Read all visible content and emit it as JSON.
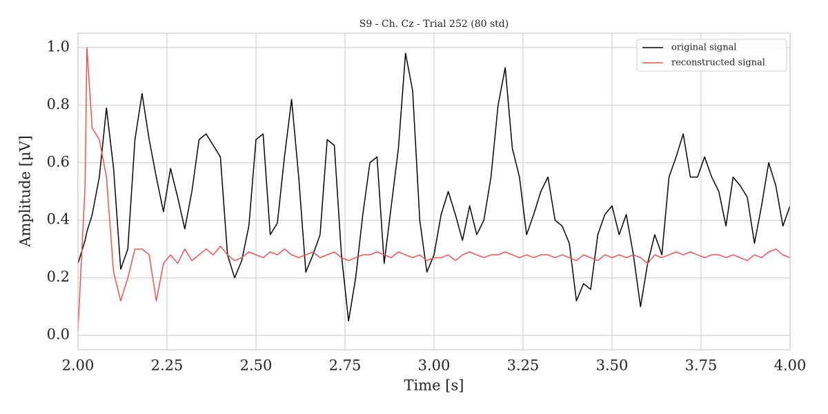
{
  "chart_data": {
    "type": "line",
    "title": "S9 - Ch. Cz - Trial 252 (80 std)",
    "x_label": "Time [s]",
    "y_label": "Amplitude [μV]",
    "xlim": [
      2.0,
      4.0
    ],
    "ylim": [
      -0.05,
      1.05
    ],
    "xticks": [
      {
        "value": 2.0,
        "label": "2.00"
      },
      2.25,
      {
        "value": 2.5,
        "label": "2.50"
      },
      2.75,
      {
        "value": 3.0,
        "label": "3.00"
      },
      3.25,
      {
        "value": 3.5,
        "label": "3.50"
      },
      3.75,
      {
        "value": 4.0,
        "label": "4.00"
      }
    ],
    "yticks": [
      {
        "value": 0,
        "label": "0.0"
      },
      0.2,
      0.4,
      0.6,
      0.8,
      {
        "value": 1,
        "label": "1.0"
      }
    ],
    "grid": true,
    "legend": "upper right",
    "x": [
      2.0,
      2.02,
      2.025,
      2.04,
      2.06,
      2.08,
      2.1,
      2.12,
      2.14,
      2.16,
      2.18,
      2.2,
      2.22,
      2.24,
      2.26,
      2.28,
      2.3,
      2.32,
      2.34,
      2.36,
      2.38,
      2.4,
      2.42,
      2.44,
      2.46,
      2.48,
      2.5,
      2.52,
      2.54,
      2.56,
      2.58,
      2.6,
      2.62,
      2.64,
      2.66,
      2.68,
      2.7,
      2.72,
      2.74,
      2.76,
      2.78,
      2.8,
      2.82,
      2.84,
      2.86,
      2.88,
      2.9,
      2.92,
      2.94,
      2.96,
      2.98,
      3.0,
      3.02,
      3.04,
      3.06,
      3.08,
      3.1,
      3.12,
      3.14,
      3.16,
      3.18,
      3.2,
      3.22,
      3.24,
      3.26,
      3.28,
      3.3,
      3.32,
      3.34,
      3.36,
      3.38,
      3.4,
      3.42,
      3.44,
      3.46,
      3.48,
      3.5,
      3.52,
      3.54,
      3.56,
      3.58,
      3.6,
      3.62,
      3.64,
      3.66,
      3.68,
      3.7,
      3.72,
      3.74,
      3.76,
      3.78,
      3.8,
      3.82,
      3.84,
      3.86,
      3.88,
      3.9,
      3.92,
      3.94,
      3.96,
      3.98,
      4.0
    ],
    "series": [
      {
        "name": "original signal",
        "color": "#000000",
        "values": [
          0.25,
          0.33,
          0.36,
          0.42,
          0.55,
          0.79,
          0.58,
          0.23,
          0.3,
          0.68,
          0.84,
          0.68,
          0.55,
          0.43,
          0.58,
          0.48,
          0.37,
          0.5,
          0.68,
          0.7,
          0.66,
          0.62,
          0.28,
          0.2,
          0.26,
          0.38,
          0.68,
          0.7,
          0.35,
          0.39,
          0.62,
          0.82,
          0.55,
          0.22,
          0.28,
          0.35,
          0.68,
          0.66,
          0.28,
          0.05,
          0.2,
          0.42,
          0.6,
          0.62,
          0.25,
          0.45,
          0.65,
          0.98,
          0.85,
          0.4,
          0.22,
          0.28,
          0.42,
          0.5,
          0.42,
          0.33,
          0.45,
          0.35,
          0.4,
          0.55,
          0.8,
          0.93,
          0.65,
          0.55,
          0.35,
          0.42,
          0.5,
          0.55,
          0.4,
          0.38,
          0.32,
          0.12,
          0.18,
          0.16,
          0.35,
          0.42,
          0.45,
          0.35,
          0.42,
          0.28,
          0.1,
          0.25,
          0.35,
          0.28,
          0.55,
          0.62,
          0.7,
          0.55,
          0.55,
          0.62,
          0.55,
          0.5,
          0.38,
          0.55,
          0.52,
          0.48,
          0.32,
          0.45,
          0.6,
          0.52,
          0.38,
          0.45
        ]
      },
      {
        "name": "reconstructed signal",
        "color": "#ff4b4b",
        "values": [
          0.02,
          0.52,
          1.0,
          0.72,
          0.68,
          0.55,
          0.22,
          0.12,
          0.2,
          0.3,
          0.3,
          0.28,
          0.12,
          0.25,
          0.28,
          0.25,
          0.3,
          0.26,
          0.28,
          0.3,
          0.28,
          0.31,
          0.28,
          0.26,
          0.27,
          0.29,
          0.28,
          0.27,
          0.29,
          0.28,
          0.3,
          0.28,
          0.27,
          0.28,
          0.29,
          0.27,
          0.28,
          0.29,
          0.27,
          0.26,
          0.27,
          0.28,
          0.28,
          0.29,
          0.28,
          0.27,
          0.29,
          0.28,
          0.27,
          0.28,
          0.26,
          0.27,
          0.27,
          0.28,
          0.26,
          0.28,
          0.29,
          0.28,
          0.27,
          0.28,
          0.28,
          0.29,
          0.28,
          0.27,
          0.28,
          0.27,
          0.28,
          0.28,
          0.27,
          0.28,
          0.27,
          0.26,
          0.28,
          0.27,
          0.26,
          0.28,
          0.27,
          0.28,
          0.27,
          0.28,
          0.27,
          0.25,
          0.28,
          0.27,
          0.28,
          0.29,
          0.28,
          0.29,
          0.28,
          0.27,
          0.28,
          0.28,
          0.27,
          0.28,
          0.27,
          0.26,
          0.28,
          0.27,
          0.29,
          0.3,
          0.28,
          0.27
        ]
      }
    ]
  }
}
